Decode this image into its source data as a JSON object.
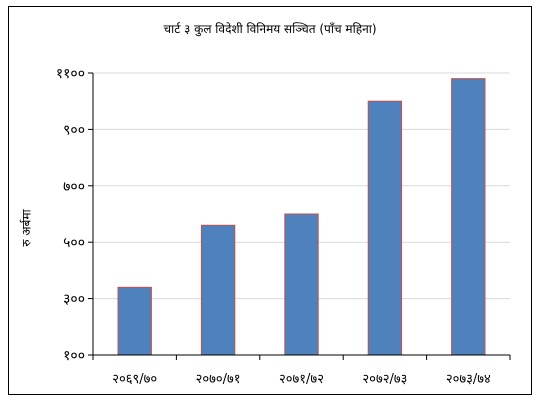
{
  "chart_data": {
    "type": "bar",
    "title": "चार्ट ३ कुल विदेशी विनिमय सञ्चित (पाँच महिना)",
    "ylabel": "रु अर्बमा",
    "xlabel": "",
    "categories": [
      "२०६९/७०",
      "२०७०/७१",
      "२०७१/७२",
      "२०७२/७३",
      "२०७३/७४"
    ],
    "values": [
      340,
      560,
      600,
      1000,
      1080
    ],
    "ylim": [
      100,
      1100
    ],
    "yticks": [
      100,
      300,
      500,
      700,
      900,
      1100
    ],
    "ytick_labels": [
      "१००",
      "३००",
      "५००",
      "७००",
      "९००",
      "११००"
    ],
    "grid": true,
    "legend": "none",
    "bar_color": "#4f81bd",
    "bar_edge_color": "#c0504d"
  }
}
